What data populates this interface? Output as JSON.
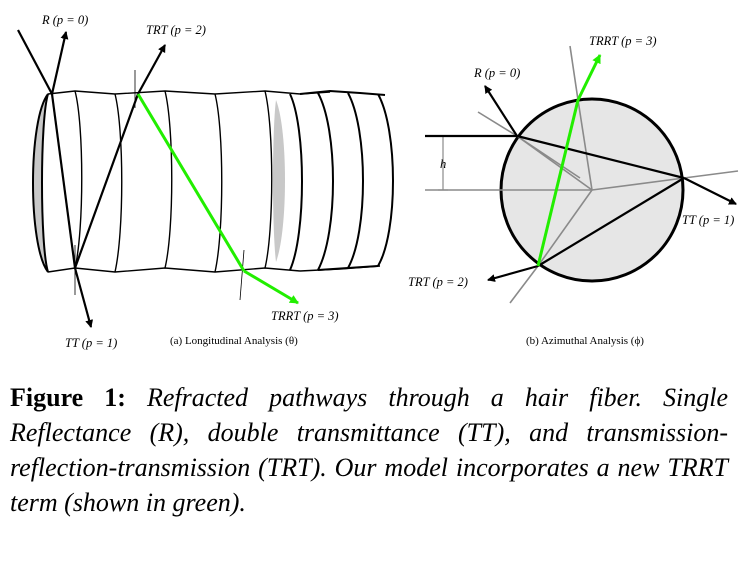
{
  "figure": {
    "panel_a": {
      "caption": "(a) Longitudinal Analysis (θ)",
      "labels": {
        "r": "R (p = 0)",
        "trt": "TRT (p = 2)",
        "trrt": "TRRT (p = 3)",
        "tt": "TT (p = 1)"
      }
    },
    "panel_b": {
      "caption": "(b) Azimuthal Analysis (ϕ)",
      "labels": {
        "trrt": "TRRT (p = 3)",
        "r": "R (p = 0)",
        "h": "h",
        "tt": "TT (p = 1)",
        "trt": "TRT (p = 2)"
      }
    },
    "colors": {
      "highlight_path": "#22ee00",
      "fiber_fill": "#e6e6e6",
      "shade": "#c8c8c8"
    }
  },
  "caption": {
    "label": "Figure 1:",
    "text": "Refracted pathways through a hair fiber. Single Reflectance (R), double transmittance (TT), and transmission-reflection-transmission (TRT). Our model incorporates a new TRRT term (shown in green)."
  }
}
